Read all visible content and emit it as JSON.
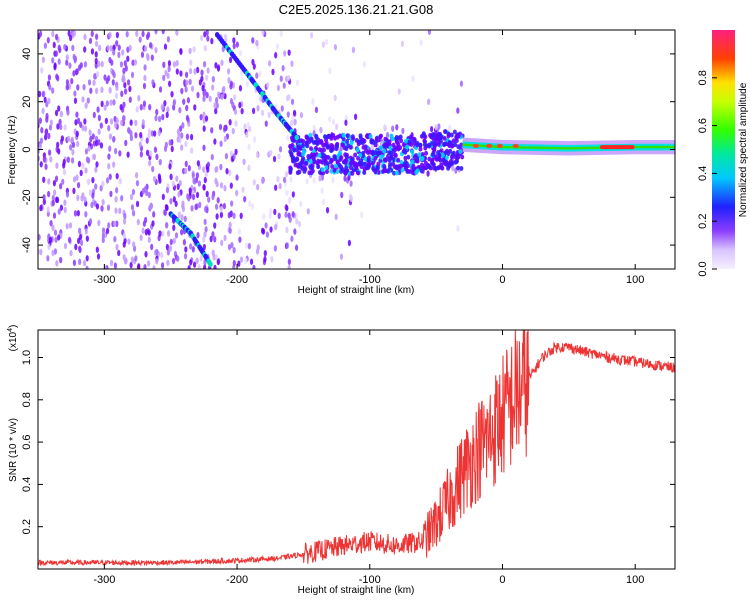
{
  "title": "C2E5.2025.136.21.21.G08",
  "chart_data": [
    {
      "type": "heatmap",
      "xlabel": "Height of straight line (km)",
      "ylabel": "Frequency (Hz)",
      "xlim": [
        -350,
        130
      ],
      "ylim": [
        -50,
        50
      ],
      "x_ticks": [
        -300,
        -200,
        -100,
        0,
        100
      ],
      "y_ticks": [
        -40,
        -20,
        0,
        20,
        40
      ],
      "colorbar": {
        "label": "Normalized spectral amplitude",
        "range": [
          0.0,
          1.0
        ],
        "ticks": [
          "0.0",
          "0.2",
          "0.4",
          "0.6",
          "0.8"
        ]
      },
      "features": {
        "carrier_line": [
          [
            -30,
            2
          ],
          [
            0,
            1
          ],
          [
            50,
            0.5
          ],
          [
            100,
            1
          ],
          [
            130,
            1
          ]
        ],
        "doppler_branch": [
          [
            -215,
            48
          ],
          [
            -190,
            30
          ],
          [
            -170,
            15
          ],
          [
            -155,
            5
          ]
        ],
        "doppler_branch_lower": [
          [
            -250,
            -27
          ],
          [
            -235,
            -35
          ],
          [
            -220,
            -48
          ]
        ]
      }
    },
    {
      "type": "line",
      "xlabel": "Height of straight line (km)",
      "ylabel": "SNR (10 * v/v)",
      "y_scale_label": "(x10",
      "y_scale_exponent": "4",
      "xlim": [
        -350,
        130
      ],
      "ylim": [
        0,
        1.13
      ],
      "x_ticks": [
        -300,
        -200,
        -100,
        0,
        100
      ],
      "y_ticks": [
        "0.2",
        "0.4",
        "0.6",
        "0.8",
        "1.0"
      ],
      "series": [
        {
          "color": "#ee3333",
          "x": [
            -350,
            -300,
            -250,
            -200,
            -170,
            -150,
            -120,
            -100,
            -80,
            -60,
            -50,
            -40,
            -30,
            -20,
            -10,
            0,
            10,
            20,
            30,
            40,
            50,
            60,
            80,
            100,
            130
          ],
          "y": [
            0.03,
            0.03,
            0.03,
            0.04,
            0.05,
            0.07,
            0.11,
            0.13,
            0.11,
            0.13,
            0.22,
            0.33,
            0.45,
            0.55,
            0.62,
            0.72,
            0.82,
            0.9,
            1.0,
            1.05,
            1.05,
            1.03,
            1.0,
            0.98,
            0.95
          ]
        }
      ]
    }
  ]
}
